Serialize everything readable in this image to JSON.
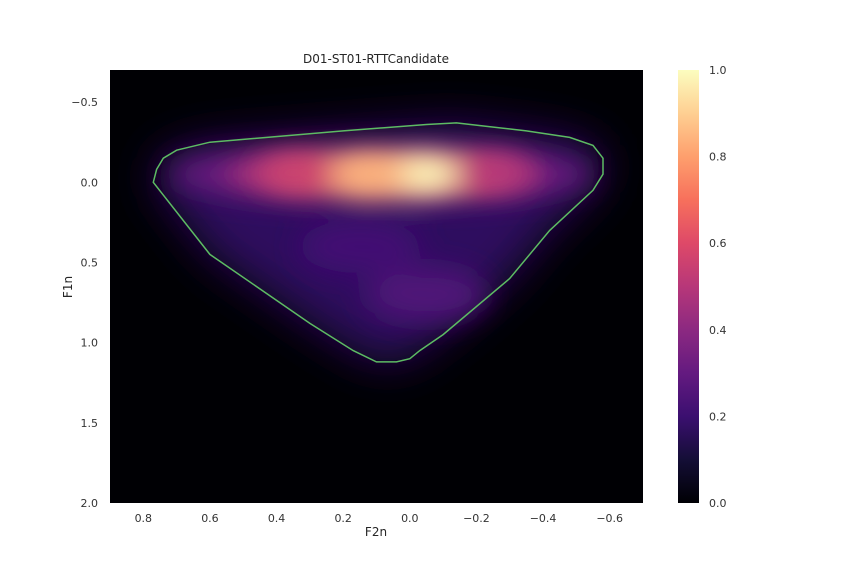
{
  "chart_data": {
    "type": "heatmap",
    "title": "D01-ST01-RTTCandidate",
    "xlabel": "F2n",
    "ylabel": "F1n",
    "xlim": [
      0.9,
      -0.7
    ],
    "ylim": [
      2.0,
      -0.7
    ],
    "x_ticks": [
      0.8,
      0.6,
      0.4,
      0.2,
      0.0,
      -0.2,
      -0.4,
      -0.6
    ],
    "x_tick_labels": [
      "0.8",
      "0.6",
      "0.4",
      "0.2",
      "0.0",
      "−0.2",
      "−0.4",
      "−0.6"
    ],
    "y_ticks": [
      -0.5,
      0.0,
      0.5,
      1.0,
      1.5,
      2.0
    ],
    "y_tick_labels": [
      "−0.5",
      "0.0",
      "0.5",
      "1.0",
      "1.5",
      "2.0"
    ],
    "colormap": "magma",
    "colorbar": {
      "range": [
        0.0,
        1.0
      ],
      "ticks": [
        0.0,
        0.2,
        0.4,
        0.6,
        0.8,
        1.0
      ],
      "tick_labels": [
        "0.0",
        "0.2",
        "0.4",
        "0.6",
        "0.8",
        "1.0"
      ]
    },
    "density_peaks": [
      {
        "f2n": -0.04,
        "f1n": -0.05,
        "density": 1.0
      },
      {
        "f2n": 0.12,
        "f1n": -0.05,
        "density": 0.85
      },
      {
        "f2n": 0.35,
        "f1n": -0.06,
        "density": 0.55
      },
      {
        "f2n": -0.25,
        "f1n": -0.06,
        "density": 0.5
      },
      {
        "f2n": 0.15,
        "f1n": 0.4,
        "density": 0.22
      },
      {
        "f2n": -0.05,
        "f1n": 0.7,
        "density": 0.25
      }
    ],
    "hull": {
      "color": "#5dbb63",
      "points": [
        [
          0.76,
          -0.08
        ],
        [
          0.74,
          -0.15
        ],
        [
          0.7,
          -0.2
        ],
        [
          0.6,
          -0.25
        ],
        [
          0.2,
          -0.32
        ],
        [
          -0.05,
          -0.36
        ],
        [
          -0.14,
          -0.37
        ],
        [
          -0.35,
          -0.32
        ],
        [
          -0.48,
          -0.28
        ],
        [
          -0.55,
          -0.23
        ],
        [
          -0.58,
          -0.15
        ],
        [
          -0.58,
          -0.05
        ],
        [
          -0.55,
          0.05
        ],
        [
          -0.42,
          0.3
        ],
        [
          -0.3,
          0.6
        ],
        [
          -0.1,
          0.95
        ],
        [
          -0.03,
          1.05
        ],
        [
          0.0,
          1.1
        ],
        [
          0.04,
          1.12
        ],
        [
          0.1,
          1.12
        ],
        [
          0.17,
          1.05
        ],
        [
          0.3,
          0.88
        ],
        [
          0.6,
          0.45
        ],
        [
          0.77,
          0.0
        ],
        [
          0.76,
          -0.08
        ]
      ]
    }
  }
}
